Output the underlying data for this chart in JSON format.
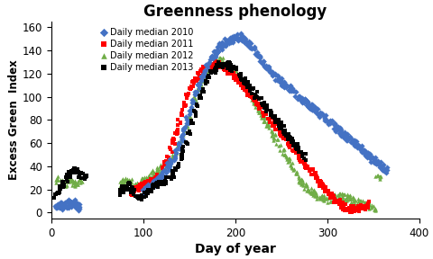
{
  "title": "Greenness phenology",
  "xlabel": "Day of year",
  "ylabel": "Excess Green  Index",
  "xlim": [
    0,
    400
  ],
  "ylim": [
    -5,
    165
  ],
  "xticks": [
    0,
    100,
    200,
    300,
    400
  ],
  "yticks": [
    0,
    20,
    40,
    60,
    80,
    100,
    120,
    140,
    160
  ],
  "series": {
    "2010": {
      "color": "#4472C4",
      "marker": "D",
      "label": "Daily median 2010",
      "points": [
        [
          5,
          5
        ],
        [
          8,
          6
        ],
        [
          10,
          7
        ],
        [
          12,
          5
        ],
        [
          15,
          8
        ],
        [
          18,
          6
        ],
        [
          20,
          9
        ],
        [
          22,
          7
        ],
        [
          25,
          8
        ],
        [
          27,
          6
        ],
        [
          30,
          5
        ],
        [
          100,
          18
        ],
        [
          103,
          20
        ],
        [
          106,
          22
        ],
        [
          109,
          24
        ],
        [
          112,
          26
        ],
        [
          115,
          28
        ],
        [
          118,
          30
        ],
        [
          121,
          33
        ],
        [
          124,
          36
        ],
        [
          127,
          40
        ],
        [
          130,
          44
        ],
        [
          133,
          48
        ],
        [
          136,
          53
        ],
        [
          139,
          58
        ],
        [
          142,
          65
        ],
        [
          145,
          72
        ],
        [
          148,
          80
        ],
        [
          151,
          88
        ],
        [
          154,
          96
        ],
        [
          157,
          103
        ],
        [
          160,
          110
        ],
        [
          163,
          116
        ],
        [
          166,
          121
        ],
        [
          169,
          126
        ],
        [
          172,
          130
        ],
        [
          175,
          134
        ],
        [
          178,
          137
        ],
        [
          181,
          140
        ],
        [
          184,
          143
        ],
        [
          187,
          145
        ],
        [
          190,
          147
        ],
        [
          193,
          148
        ],
        [
          196,
          149
        ],
        [
          199,
          150
        ],
        [
          202,
          151
        ],
        [
          205,
          152
        ],
        [
          208,
          150
        ],
        [
          211,
          148
        ],
        [
          214,
          146
        ],
        [
          217,
          143
        ],
        [
          220,
          140
        ],
        [
          223,
          137
        ],
        [
          226,
          134
        ],
        [
          229,
          131
        ],
        [
          232,
          128
        ],
        [
          235,
          125
        ],
        [
          238,
          122
        ],
        [
          241,
          119
        ],
        [
          244,
          117
        ],
        [
          247,
          115
        ],
        [
          250,
          113
        ],
        [
          253,
          111
        ],
        [
          256,
          109
        ],
        [
          259,
          107
        ],
        [
          262,
          105
        ],
        [
          265,
          103
        ],
        [
          268,
          101
        ],
        [
          271,
          99
        ],
        [
          274,
          97
        ],
        [
          277,
          95
        ],
        [
          280,
          93
        ],
        [
          283,
          91
        ],
        [
          286,
          89
        ],
        [
          289,
          87
        ],
        [
          292,
          85
        ],
        [
          295,
          83
        ],
        [
          298,
          81
        ],
        [
          301,
          79
        ],
        [
          304,
          77
        ],
        [
          307,
          75
        ],
        [
          310,
          73
        ],
        [
          313,
          71
        ],
        [
          316,
          69
        ],
        [
          319,
          67
        ],
        [
          322,
          65
        ],
        [
          325,
          63
        ],
        [
          328,
          61
        ],
        [
          331,
          59
        ],
        [
          334,
          57
        ],
        [
          337,
          55
        ],
        [
          340,
          53
        ],
        [
          343,
          51
        ],
        [
          346,
          49
        ],
        [
          349,
          47
        ],
        [
          352,
          45
        ],
        [
          355,
          43
        ],
        [
          358,
          41
        ],
        [
          361,
          39
        ],
        [
          364,
          37
        ]
      ]
    },
    "2011": {
      "color": "#FF0000",
      "marker": "s",
      "label": "Daily median 2011",
      "points": [
        [
          88,
          18
        ],
        [
          91,
          20
        ],
        [
          94,
          21
        ],
        [
          97,
          22
        ],
        [
          100,
          23
        ],
        [
          103,
          24
        ],
        [
          106,
          25
        ],
        [
          109,
          26
        ],
        [
          112,
          28
        ],
        [
          115,
          30
        ],
        [
          118,
          33
        ],
        [
          121,
          37
        ],
        [
          124,
          42
        ],
        [
          127,
          48
        ],
        [
          130,
          55
        ],
        [
          133,
          62
        ],
        [
          136,
          70
        ],
        [
          139,
          78
        ],
        [
          142,
          86
        ],
        [
          145,
          93
        ],
        [
          148,
          100
        ],
        [
          151,
          106
        ],
        [
          154,
          111
        ],
        [
          157,
          115
        ],
        [
          160,
          118
        ],
        [
          163,
          121
        ],
        [
          166,
          123
        ],
        [
          169,
          125
        ],
        [
          172,
          126
        ],
        [
          175,
          127
        ],
        [
          178,
          128
        ],
        [
          181,
          128
        ],
        [
          184,
          127
        ],
        [
          187,
          126
        ],
        [
          190,
          124
        ],
        [
          193,
          122
        ],
        [
          196,
          120
        ],
        [
          199,
          118
        ],
        [
          202,
          116
        ],
        [
          205,
          113
        ],
        [
          208,
          110
        ],
        [
          211,
          107
        ],
        [
          214,
          104
        ],
        [
          217,
          101
        ],
        [
          220,
          98
        ],
        [
          223,
          95
        ],
        [
          226,
          92
        ],
        [
          229,
          89
        ],
        [
          232,
          86
        ],
        [
          235,
          83
        ],
        [
          238,
          80
        ],
        [
          241,
          77
        ],
        [
          244,
          74
        ],
        [
          247,
          71
        ],
        [
          250,
          68
        ],
        [
          253,
          65
        ],
        [
          256,
          62
        ],
        [
          259,
          59
        ],
        [
          262,
          56
        ],
        [
          265,
          53
        ],
        [
          268,
          50
        ],
        [
          271,
          47
        ],
        [
          274,
          44
        ],
        [
          277,
          41
        ],
        [
          280,
          38
        ],
        [
          283,
          35
        ],
        [
          286,
          32
        ],
        [
          289,
          29
        ],
        [
          292,
          26
        ],
        [
          295,
          23
        ],
        [
          298,
          20
        ],
        [
          301,
          17
        ],
        [
          304,
          15
        ],
        [
          307,
          12
        ],
        [
          310,
          10
        ],
        [
          313,
          8
        ],
        [
          316,
          6
        ],
        [
          319,
          5
        ],
        [
          322,
          4
        ],
        [
          325,
          3
        ],
        [
          328,
          3
        ],
        [
          331,
          3
        ],
        [
          334,
          3
        ],
        [
          337,
          4
        ],
        [
          340,
          5
        ],
        [
          343,
          6
        ],
        [
          346,
          7
        ]
      ]
    },
    "2012": {
      "color": "#70AD47",
      "marker": "^",
      "label": "Daily median 2012",
      "points": [
        [
          5,
          28
        ],
        [
          8,
          30
        ],
        [
          11,
          27
        ],
        [
          14,
          25
        ],
        [
          17,
          26
        ],
        [
          20,
          28
        ],
        [
          23,
          27
        ],
        [
          26,
          25
        ],
        [
          29,
          26
        ],
        [
          32,
          27
        ],
        [
          75,
          25
        ],
        [
          78,
          27
        ],
        [
          81,
          30
        ],
        [
          84,
          28
        ],
        [
          87,
          26
        ],
        [
          90,
          24
        ],
        [
          93,
          23
        ],
        [
          96,
          25
        ],
        [
          99,
          27
        ],
        [
          102,
          28
        ],
        [
          105,
          30
        ],
        [
          108,
          32
        ],
        [
          111,
          35
        ],
        [
          114,
          37
        ],
        [
          117,
          38
        ],
        [
          120,
          39
        ],
        [
          123,
          40
        ],
        [
          126,
          42
        ],
        [
          129,
          44
        ],
        [
          132,
          48
        ],
        [
          135,
          53
        ],
        [
          138,
          58
        ],
        [
          141,
          64
        ],
        [
          144,
          70
        ],
        [
          147,
          77
        ],
        [
          150,
          85
        ],
        [
          153,
          92
        ],
        [
          156,
          99
        ],
        [
          159,
          106
        ],
        [
          162,
          112
        ],
        [
          165,
          116
        ],
        [
          168,
          120
        ],
        [
          171,
          123
        ],
        [
          174,
          126
        ],
        [
          177,
          128
        ],
        [
          180,
          130
        ],
        [
          183,
          131
        ],
        [
          186,
          131
        ],
        [
          189,
          130
        ],
        [
          192,
          128
        ],
        [
          195,
          126
        ],
        [
          198,
          123
        ],
        [
          201,
          120
        ],
        [
          204,
          117
        ],
        [
          207,
          113
        ],
        [
          210,
          109
        ],
        [
          213,
          105
        ],
        [
          216,
          101
        ],
        [
          219,
          97
        ],
        [
          222,
          93
        ],
        [
          225,
          89
        ],
        [
          228,
          85
        ],
        [
          231,
          81
        ],
        [
          234,
          77
        ],
        [
          237,
          73
        ],
        [
          240,
          69
        ],
        [
          243,
          65
        ],
        [
          246,
          61
        ],
        [
          249,
          57
        ],
        [
          252,
          53
        ],
        [
          255,
          49
        ],
        [
          258,
          45
        ],
        [
          261,
          41
        ],
        [
          264,
          37
        ],
        [
          267,
          33
        ],
        [
          270,
          29
        ],
        [
          273,
          26
        ],
        [
          276,
          23
        ],
        [
          279,
          21
        ],
        [
          282,
          19
        ],
        [
          285,
          17
        ],
        [
          288,
          15
        ],
        [
          291,
          14
        ],
        [
          294,
          13
        ],
        [
          297,
          12
        ],
        [
          300,
          11
        ],
        [
          303,
          11
        ],
        [
          306,
          12
        ],
        [
          309,
          13
        ],
        [
          312,
          14
        ],
        [
          315,
          15
        ],
        [
          318,
          14
        ],
        [
          321,
          13
        ],
        [
          324,
          12
        ],
        [
          327,
          11
        ],
        [
          330,
          10
        ],
        [
          333,
          9
        ],
        [
          336,
          8
        ],
        [
          339,
          8
        ],
        [
          342,
          7
        ],
        [
          345,
          6
        ],
        [
          348,
          5
        ],
        [
          351,
          4
        ],
        [
          354,
          34
        ],
        [
          357,
          32
        ]
      ]
    },
    "2013": {
      "color": "#000000",
      "marker": "s",
      "label": "Daily median 2013",
      "points": [
        [
          4,
          14
        ],
        [
          7,
          17
        ],
        [
          10,
          20
        ],
        [
          13,
          25
        ],
        [
          16,
          30
        ],
        [
          19,
          33
        ],
        [
          22,
          35
        ],
        [
          25,
          36
        ],
        [
          28,
          35
        ],
        [
          31,
          33
        ],
        [
          34,
          32
        ],
        [
          37,
          30
        ],
        [
          75,
          18
        ],
        [
          78,
          20
        ],
        [
          81,
          22
        ],
        [
          84,
          23
        ],
        [
          87,
          20
        ],
        [
          90,
          17
        ],
        [
          93,
          15
        ],
        [
          96,
          13
        ],
        [
          99,
          14
        ],
        [
          102,
          16
        ],
        [
          105,
          18
        ],
        [
          108,
          20
        ],
        [
          111,
          22
        ],
        [
          114,
          24
        ],
        [
          117,
          25
        ],
        [
          120,
          26
        ],
        [
          123,
          27
        ],
        [
          126,
          28
        ],
        [
          129,
          30
        ],
        [
          132,
          33
        ],
        [
          135,
          37
        ],
        [
          138,
          42
        ],
        [
          141,
          48
        ],
        [
          144,
          55
        ],
        [
          147,
          62
        ],
        [
          150,
          70
        ],
        [
          153,
          78
        ],
        [
          156,
          86
        ],
        [
          159,
          93
        ],
        [
          162,
          100
        ],
        [
          165,
          106
        ],
        [
          168,
          112
        ],
        [
          171,
          116
        ],
        [
          174,
          120
        ],
        [
          177,
          123
        ],
        [
          180,
          125
        ],
        [
          183,
          127
        ],
        [
          186,
          128
        ],
        [
          189,
          128
        ],
        [
          192,
          127
        ],
        [
          195,
          126
        ],
        [
          198,
          124
        ],
        [
          201,
          122
        ],
        [
          204,
          120
        ],
        [
          207,
          117
        ],
        [
          210,
          114
        ],
        [
          213,
          111
        ],
        [
          216,
          108
        ],
        [
          219,
          105
        ],
        [
          222,
          102
        ],
        [
          225,
          99
        ],
        [
          228,
          96
        ],
        [
          231,
          93
        ],
        [
          234,
          90
        ],
        [
          237,
          87
        ],
        [
          240,
          84
        ],
        [
          243,
          81
        ],
        [
          246,
          78
        ],
        [
          249,
          75
        ],
        [
          252,
          72
        ],
        [
          255,
          69
        ],
        [
          258,
          66
        ],
        [
          261,
          63
        ],
        [
          264,
          60
        ],
        [
          267,
          57
        ],
        [
          270,
          54
        ],
        [
          273,
          51
        ],
        [
          276,
          48
        ]
      ]
    }
  }
}
